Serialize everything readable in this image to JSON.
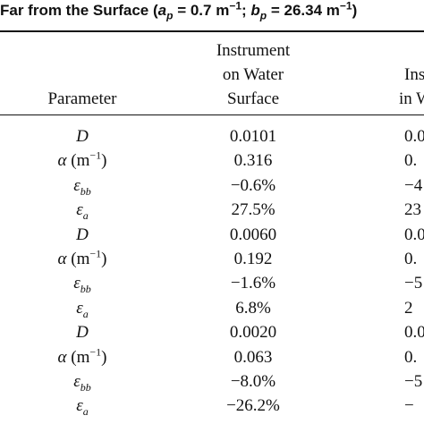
{
  "title": {
    "prefix": "Far from the Surface (",
    "a": "a",
    "a_sub": "p",
    "a_value": " = 0.7 m",
    "a_exp": "−1",
    "sep": "; ",
    "b": "b",
    "b_sub": "p",
    "b_value": " = 26.34 m",
    "b_exp": "−1",
    "suffix": ")"
  },
  "header": [
    [
      "Parameter"
    ],
    [
      "Instrument",
      "on Water",
      "Surface"
    ],
    [
      "Instr",
      "in W"
    ]
  ],
  "rows": [
    {
      "parameter": [
        {
          "text": "D",
          "style": "italic"
        }
      ],
      "values": [
        "0.0101",
        "0.0"
      ]
    },
    {
      "parameter": [
        {
          "text": "α",
          "style": "italic"
        },
        {
          "text": " (m"
        },
        {
          "text": "−1",
          "pos": "sup"
        },
        {
          "text": ")"
        }
      ],
      "values": [
        "0.316",
        "0."
      ]
    },
    {
      "parameter": [
        {
          "text": "ε",
          "style": "italic"
        },
        {
          "text": "bb",
          "pos": "sub",
          "style": "italic"
        }
      ],
      "values": [
        "−0.6%",
        "−4"
      ]
    },
    {
      "parameter": [
        {
          "text": "ε",
          "style": "italic"
        },
        {
          "text": "a",
          "pos": "sub",
          "style": "italic"
        }
      ],
      "values": [
        "27.5%",
        "23"
      ]
    },
    {
      "parameter": [
        {
          "text": "D",
          "style": "italic"
        }
      ],
      "values": [
        "0.0060",
        "0.0"
      ]
    },
    {
      "parameter": [
        {
          "text": "α",
          "style": "italic"
        },
        {
          "text": " (m"
        },
        {
          "text": "−1",
          "pos": "sup"
        },
        {
          "text": ")"
        }
      ],
      "values": [
        "0.192",
        "0."
      ]
    },
    {
      "parameter": [
        {
          "text": "ε",
          "style": "italic"
        },
        {
          "text": "bb",
          "pos": "sub",
          "style": "italic"
        }
      ],
      "values": [
        "−1.6%",
        "−5"
      ]
    },
    {
      "parameter": [
        {
          "text": "ε",
          "style": "italic"
        },
        {
          "text": "a",
          "pos": "sub",
          "style": "italic"
        }
      ],
      "values": [
        "6.8%",
        "2"
      ]
    },
    {
      "parameter": [
        {
          "text": "D",
          "style": "italic"
        }
      ],
      "values": [
        "0.0020",
        "0.0"
      ]
    },
    {
      "parameter": [
        {
          "text": "α",
          "style": "italic"
        },
        {
          "text": " (m"
        },
        {
          "text": "−1",
          "pos": "sup"
        },
        {
          "text": ")"
        }
      ],
      "values": [
        "0.063",
        "0."
      ]
    },
    {
      "parameter": [
        {
          "text": "ε",
          "style": "italic"
        },
        {
          "text": "bb",
          "pos": "sub",
          "style": "italic"
        }
      ],
      "values": [
        "−8.0%",
        "−5"
      ]
    },
    {
      "parameter": [
        {
          "text": "ε",
          "style": "italic"
        },
        {
          "text": "a",
          "pos": "sub",
          "style": "italic"
        }
      ],
      "values": [
        "−26.2%",
        "−"
      ]
    }
  ]
}
